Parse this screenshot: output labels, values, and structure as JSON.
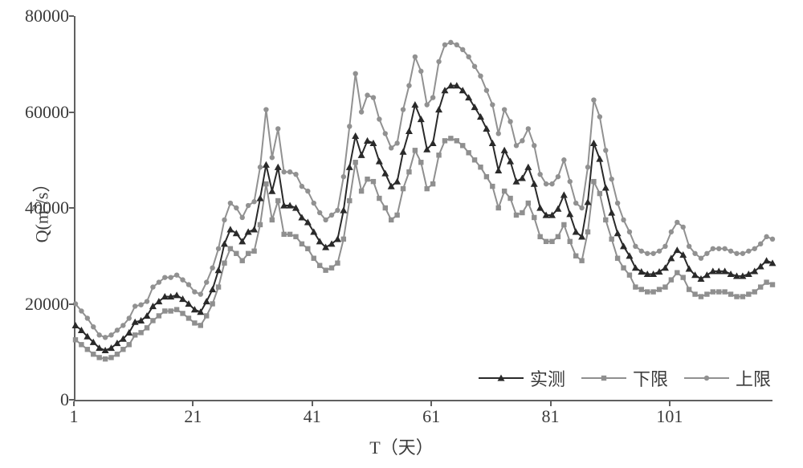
{
  "chart": {
    "type": "line",
    "background_color": "#ffffff",
    "axis_color": "#606060",
    "grid": false,
    "xlabel": "T（天）",
    "ylabel_html": "Q(m<sup>3</sup>/s）",
    "label_fontsize": 22,
    "tick_fontsize": 22,
    "xlim": [
      1,
      118
    ],
    "ylim": [
      0,
      80000
    ],
    "x_ticks": [
      1,
      21,
      41,
      61,
      81,
      101
    ],
    "y_ticks": [
      0,
      20000,
      40000,
      60000,
      80000
    ],
    "legend": {
      "position": "bottom-right",
      "items": [
        {
          "label": "实测",
          "series_key": "measured"
        },
        {
          "label": "下限",
          "series_key": "lower"
        },
        {
          "label": "上限",
          "series_key": "upper"
        }
      ]
    },
    "series": {
      "upper": {
        "color": "#919191",
        "line_width": 2,
        "marker": "circle",
        "marker_size": 3.2,
        "marker_fill": "#919191",
        "data": [
          20000,
          18500,
          17000,
          15200,
          13500,
          13000,
          13500,
          14500,
          15500,
          17000,
          19500,
          19800,
          20500,
          23500,
          24500,
          25500,
          25500,
          26000,
          25000,
          24000,
          22500,
          22000,
          24500,
          27500,
          31500,
          37500,
          41000,
          40000,
          38000,
          40500,
          41300,
          48500,
          60500,
          50500,
          56500,
          47500,
          47500,
          47000,
          44500,
          43500,
          41000,
          39000,
          37500,
          38500,
          39500,
          46500,
          57000,
          68000,
          60000,
          63500,
          63000,
          58500,
          55500,
          52500,
          53500,
          60500,
          65500,
          71500,
          68500,
          61500,
          63000,
          70500,
          74000,
          74500,
          74000,
          73000,
          71500,
          69500,
          67500,
          64500,
          61500,
          55500,
          60500,
          58000,
          53000,
          54000,
          56500,
          53000,
          47000,
          45000,
          45000,
          46500,
          50000,
          45500,
          41000,
          40000,
          48500,
          62500,
          59000,
          52000,
          46000,
          41000,
          37500,
          35000,
          32000,
          31000,
          30500,
          30500,
          31000,
          32000,
          35000,
          37000,
          36000,
          32000,
          30500,
          29500,
          30500,
          31500,
          31500,
          31500,
          31000,
          30500,
          30500,
          31000,
          31500,
          32500,
          34000,
          33500
        ]
      },
      "lower": {
        "color": "#8f8f8f",
        "line_width": 2,
        "marker": "square",
        "marker_size": 3.2,
        "marker_fill": "#8f8f8f",
        "data": [
          12500,
          11500,
          10500,
          9500,
          8800,
          8500,
          8800,
          9500,
          10500,
          11500,
          13500,
          14000,
          15000,
          16500,
          17500,
          18500,
          18500,
          18800,
          18000,
          17000,
          16000,
          15500,
          17500,
          20000,
          23500,
          28500,
          31500,
          30500,
          29000,
          30500,
          31000,
          36500,
          45000,
          37500,
          41500,
          34500,
          34500,
          34000,
          32500,
          31500,
          29500,
          28000,
          27000,
          27500,
          28500,
          33500,
          41500,
          49500,
          43500,
          46000,
          45500,
          42000,
          40000,
          37500,
          38500,
          44000,
          47500,
          52000,
          49500,
          44000,
          45000,
          51000,
          54000,
          54500,
          54000,
          53000,
          51500,
          50000,
          48500,
          46500,
          44500,
          40000,
          43500,
          42000,
          38500,
          39000,
          41000,
          38000,
          34000,
          33000,
          33000,
          34000,
          36500,
          33000,
          30000,
          29000,
          35000,
          45500,
          43000,
          37500,
          33500,
          29500,
          27500,
          26000,
          23500,
          23000,
          22500,
          22500,
          23000,
          23500,
          25000,
          26500,
          25500,
          23000,
          22000,
          21500,
          22000,
          22500,
          22500,
          22500,
          22000,
          21500,
          21500,
          22000,
          22500,
          23500,
          24500,
          24000
        ]
      },
      "measured": {
        "color": "#2a2a2a",
        "line_width": 2,
        "marker": "triangle",
        "marker_size": 4.5,
        "marker_fill": "#2a2a2a",
        "data": [
          15500,
          14500,
          13200,
          12000,
          10800,
          10300,
          10800,
          11800,
          12700,
          14000,
          16200,
          16500,
          17500,
          19500,
          20500,
          21500,
          21500,
          21800,
          21000,
          20000,
          18800,
          18300,
          20500,
          23000,
          27000,
          32500,
          35500,
          34700,
          33000,
          35000,
          35500,
          42000,
          49000,
          43500,
          48500,
          40500,
          40500,
          40000,
          38000,
          37000,
          35000,
          33000,
          31800,
          32500,
          33500,
          39500,
          48500,
          55000,
          51000,
          54000,
          53500,
          49700,
          47200,
          44500,
          45500,
          51700,
          56000,
          61500,
          58500,
          52200,
          53500,
          60500,
          64500,
          65500,
          65500,
          64500,
          63000,
          61000,
          59000,
          56500,
          53500,
          47800,
          52000,
          49700,
          45500,
          46200,
          48500,
          45000,
          40000,
          38500,
          38500,
          39800,
          42700,
          38700,
          35000,
          34000,
          41200,
          53500,
          50200,
          44200,
          39000,
          34700,
          32000,
          30000,
          27500,
          26700,
          26200,
          26200,
          26700,
          27500,
          29500,
          31200,
          30200,
          27300,
          26000,
          25200,
          26000,
          26800,
          26800,
          26800,
          26200,
          25800,
          25800,
          26200,
          26800,
          27800,
          29000,
          28500
        ]
      }
    }
  }
}
